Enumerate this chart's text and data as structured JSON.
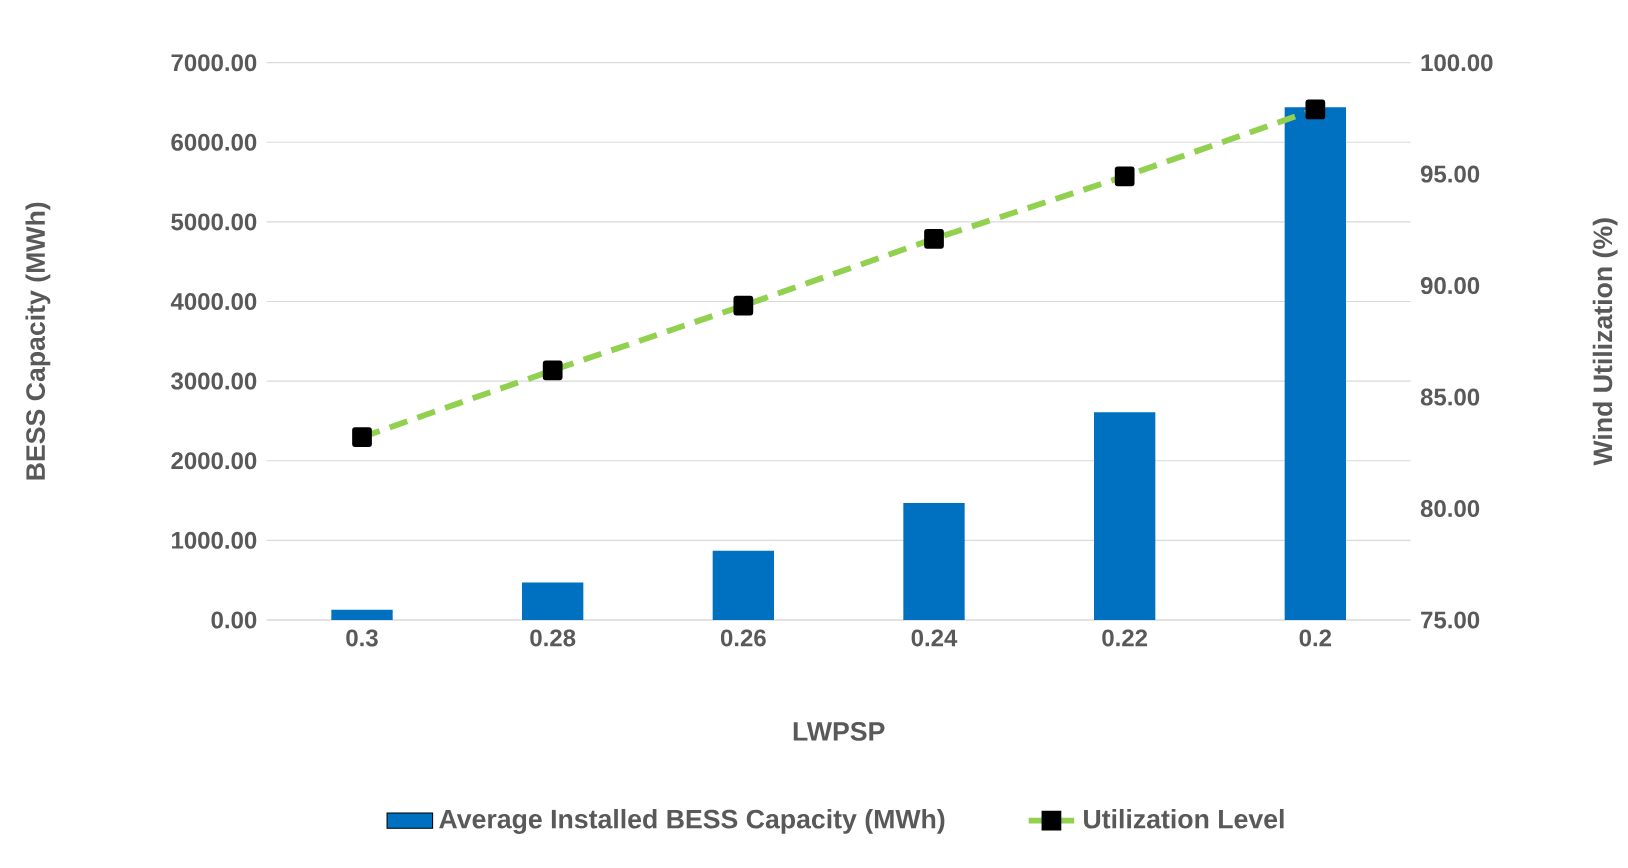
{
  "chart_data": {
    "type": "bar",
    "xlabel": "LWPSP",
    "ylabel": "BESS Capacity (MWh)",
    "y2label": "Wind Utilization (%)",
    "categories": [
      "0.3",
      "0.28",
      "0.26",
      "0.24",
      "0.22",
      "0.2"
    ],
    "series": [
      {
        "name": "Average Installed BESS Capacity (MWh)",
        "color": "#0070c0",
        "values": [
          130,
          470,
          870,
          1470,
          2610,
          6440
        ]
      },
      {
        "name": "Utilization Level",
        "type": "line",
        "axis": "y2",
        "color": "#92d050",
        "marker": "square",
        "line_style": "dashed",
        "values": [
          83.2,
          86.2,
          89.1,
          92.1,
          94.9,
          97.9
        ]
      }
    ],
    "ylim": [
      0,
      7000
    ],
    "yticks": [
      {
        "value": 0,
        "label": "0.00"
      },
      {
        "value": 1000,
        "label": "1000.00"
      },
      {
        "value": 2000,
        "label": "2000.00"
      },
      {
        "value": 3000,
        "label": "3000.00"
      },
      {
        "value": 4000,
        "label": "4000.00"
      },
      {
        "value": 5000,
        "label": "5000.00"
      },
      {
        "value": 6000,
        "label": "6000.00"
      },
      {
        "value": 7000,
        "label": "7000.00"
      }
    ],
    "y2lim": [
      75,
      100
    ],
    "y2ticks": [
      {
        "value": 75,
        "label": "75.00"
      },
      {
        "value": 80,
        "label": "80.00"
      },
      {
        "value": 85,
        "label": "85.00"
      },
      {
        "value": 90,
        "label": "90.00"
      },
      {
        "value": 95,
        "label": "95.00"
      },
      {
        "value": 100,
        "label": "100.00"
      }
    ],
    "grid": "y",
    "legend": "bottom"
  }
}
